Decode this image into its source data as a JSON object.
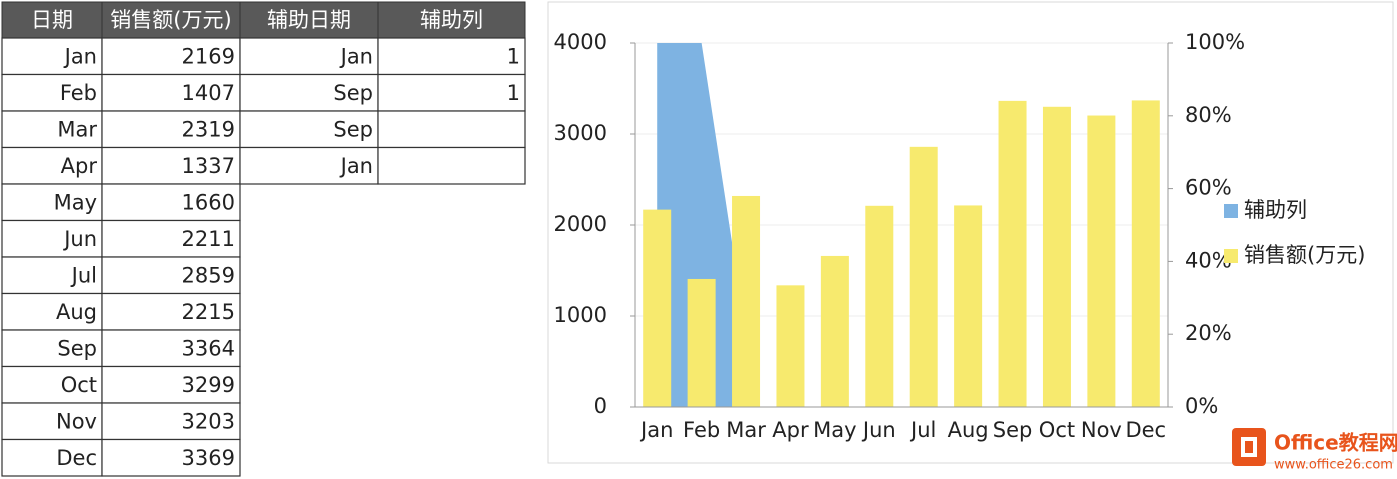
{
  "table": {
    "header": [
      "日期",
      "销售额(万元)",
      "辅助日期",
      "辅助列"
    ],
    "rows": [
      [
        "Jan",
        "2169"
      ],
      [
        "Feb",
        "1407"
      ],
      [
        "Mar",
        "2319"
      ],
      [
        "Apr",
        "1337"
      ],
      [
        "May",
        "1660"
      ],
      [
        "Jun",
        "2211"
      ],
      [
        "Jul",
        "2859"
      ],
      [
        "Aug",
        "2215"
      ],
      [
        "Sep",
        "3364"
      ],
      [
        "Oct",
        "3299"
      ],
      [
        "Nov",
        "3203"
      ],
      [
        "Dec",
        "3369"
      ]
    ],
    "aux_rows": [
      [
        "Jan",
        "1"
      ],
      [
        "Sep",
        "1"
      ],
      [
        "Sep"
      ],
      [
        "Jan"
      ]
    ]
  },
  "chart_data": {
    "type": "bar",
    "categories": [
      "Jan",
      "Feb",
      "Mar",
      "Apr",
      "May",
      "Jun",
      "Jul",
      "Aug",
      "Sep",
      "Oct",
      "Nov",
      "Dec"
    ],
    "series": [
      {
        "name": "辅助列",
        "type": "area",
        "axis": "y2",
        "color": "#7eb3e2",
        "values": [
          100,
          100,
          20,
          null,
          null,
          null,
          null,
          null,
          null,
          null,
          null,
          null
        ]
      },
      {
        "name": "销售额(万元)",
        "type": "bar",
        "color": "#f7ea6e",
        "values": [
          2169,
          1407,
          2319,
          1337,
          1660,
          2211,
          2859,
          2215,
          3364,
          3299,
          3203,
          3369
        ]
      }
    ],
    "ylim": [
      0,
      4000
    ],
    "yticks": [
      0,
      1000,
      2000,
      3000,
      4000
    ],
    "y2lim": [
      0,
      100
    ],
    "y2ticks": [
      {
        "value": 0,
        "label": "0%"
      },
      {
        "value": 20,
        "label": "20%"
      },
      {
        "value": 40,
        "label": "40%"
      },
      {
        "value": 60,
        "label": "60%"
      },
      {
        "value": 80,
        "label": "80%"
      },
      {
        "value": 100,
        "label": "100%"
      }
    ],
    "grid": true,
    "legend": "right"
  },
  "watermark": {
    "title": "Office教程网",
    "url": "www.office26.com"
  }
}
